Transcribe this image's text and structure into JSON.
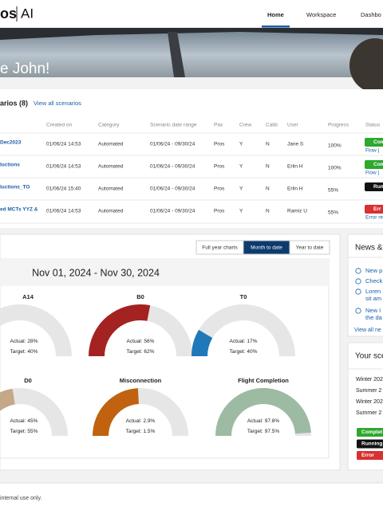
{
  "header": {
    "logo": "os",
    "logo_suffix": "AI",
    "nav": [
      "Home",
      "Workspace",
      "Dashbo"
    ],
    "active_nav": 0
  },
  "hero": {
    "greeting": "e John!"
  },
  "scenarios": {
    "title": "arios (8)",
    "link": "View all scenarios",
    "columns": [
      "Created on",
      "Category",
      "Scenario date range",
      "Pax",
      "Crew",
      "Calib",
      "User",
      "Progress",
      "Status"
    ],
    "rows": [
      {
        "cells": [
          "Dec2023",
          "01/06/24 14:53",
          "Automated",
          "01/06/24 - 09/30/24",
          "Pros",
          "Y",
          "N",
          "Jane S",
          "100%"
        ],
        "status": "Com",
        "status_color": "#2ea82e",
        "action": "Flow |"
      },
      {
        "cells": [
          "luctions",
          "01/06/24 14:53",
          "Automated",
          "01/06/24 - 09/30/24",
          "Pros",
          "Y",
          "N",
          "Erlin H",
          "100%"
        ],
        "status": "Com",
        "status_color": "#2ea82e",
        "action": "Flow |"
      },
      {
        "cells": [
          "luctions_TO",
          "01/06/24 15:40",
          "Automated",
          "01/06/24 - 09/30/24",
          "Pros",
          "Y",
          "N",
          "Erlin H",
          "55%"
        ],
        "status": "Run",
        "status_color": "#111111"
      },
      {
        "cells": [
          "ed MCTs YYZ &",
          "01/06/24 14:53",
          "Automated",
          "01/06/24 - 09/30/24",
          "Pros",
          "Y",
          "N",
          "Ramiz U",
          "55%"
        ],
        "status": "Err",
        "status_color": "#d93030",
        "action": "Error re"
      }
    ]
  },
  "charts": {
    "buttons": [
      "Full year charts",
      "Month to date",
      "Year to date"
    ],
    "active_button": 1,
    "title": "Nov 01, 2024 - Nov 30, 2024",
    "actual_caption": "Actual:",
    "target_caption": "Target:",
    "gauges": [
      {
        "name": "A14",
        "actual": 28,
        "actual_label": "28%",
        "target": 40,
        "target_label": "40%",
        "range": [
          0,
          100
        ],
        "color": "#c8c8c8"
      },
      {
        "name": "B0",
        "actual": 56,
        "actual_label": "56%",
        "target": 62,
        "target_label": "62%",
        "range": [
          0,
          100
        ],
        "color": "#a52222"
      },
      {
        "name": "T0",
        "actual": 17,
        "actual_label": "17%",
        "target": 40,
        "target_label": "40%",
        "range": [
          0,
          100
        ],
        "color": "#1f78b8"
      },
      {
        "name": "D0",
        "actual": 45,
        "actual_label": "45%",
        "target": 55,
        "target_label": "55%",
        "range": [
          0,
          100
        ],
        "color": "#c4a888"
      },
      {
        "name": "Misconnection",
        "actual": 2.9,
        "actual_label": "2.9%",
        "target": 1.5,
        "target_label": "1.5%",
        "range": [
          0,
          6
        ],
        "color": "#c0620f"
      },
      {
        "name": "Flight Completion",
        "actual": 97.8,
        "actual_label": "97.8%",
        "target": 97.5,
        "target_label": "97.5%",
        "range": [
          0,
          100
        ],
        "color": "#9dbba3"
      }
    ]
  },
  "news": {
    "title": "News &",
    "items": [
      [
        "New p"
      ],
      [
        "Check"
      ],
      [
        "Loren",
        "sit am"
      ],
      [
        "New I",
        "the da"
      ]
    ],
    "link": "View all ne"
  },
  "your_scenarios": {
    "title": "Your sce",
    "items": [
      "Winter 202",
      "Summer 2",
      "Winter 202",
      "Summer 2"
    ],
    "legend": [
      {
        "label": "Complet",
        "color": "#2ea82e"
      },
      {
        "label": "Running",
        "color": "#111111"
      },
      {
        "label": "Error",
        "color": "#d93030"
      }
    ]
  },
  "footer": {
    "text": "internal use only."
  }
}
